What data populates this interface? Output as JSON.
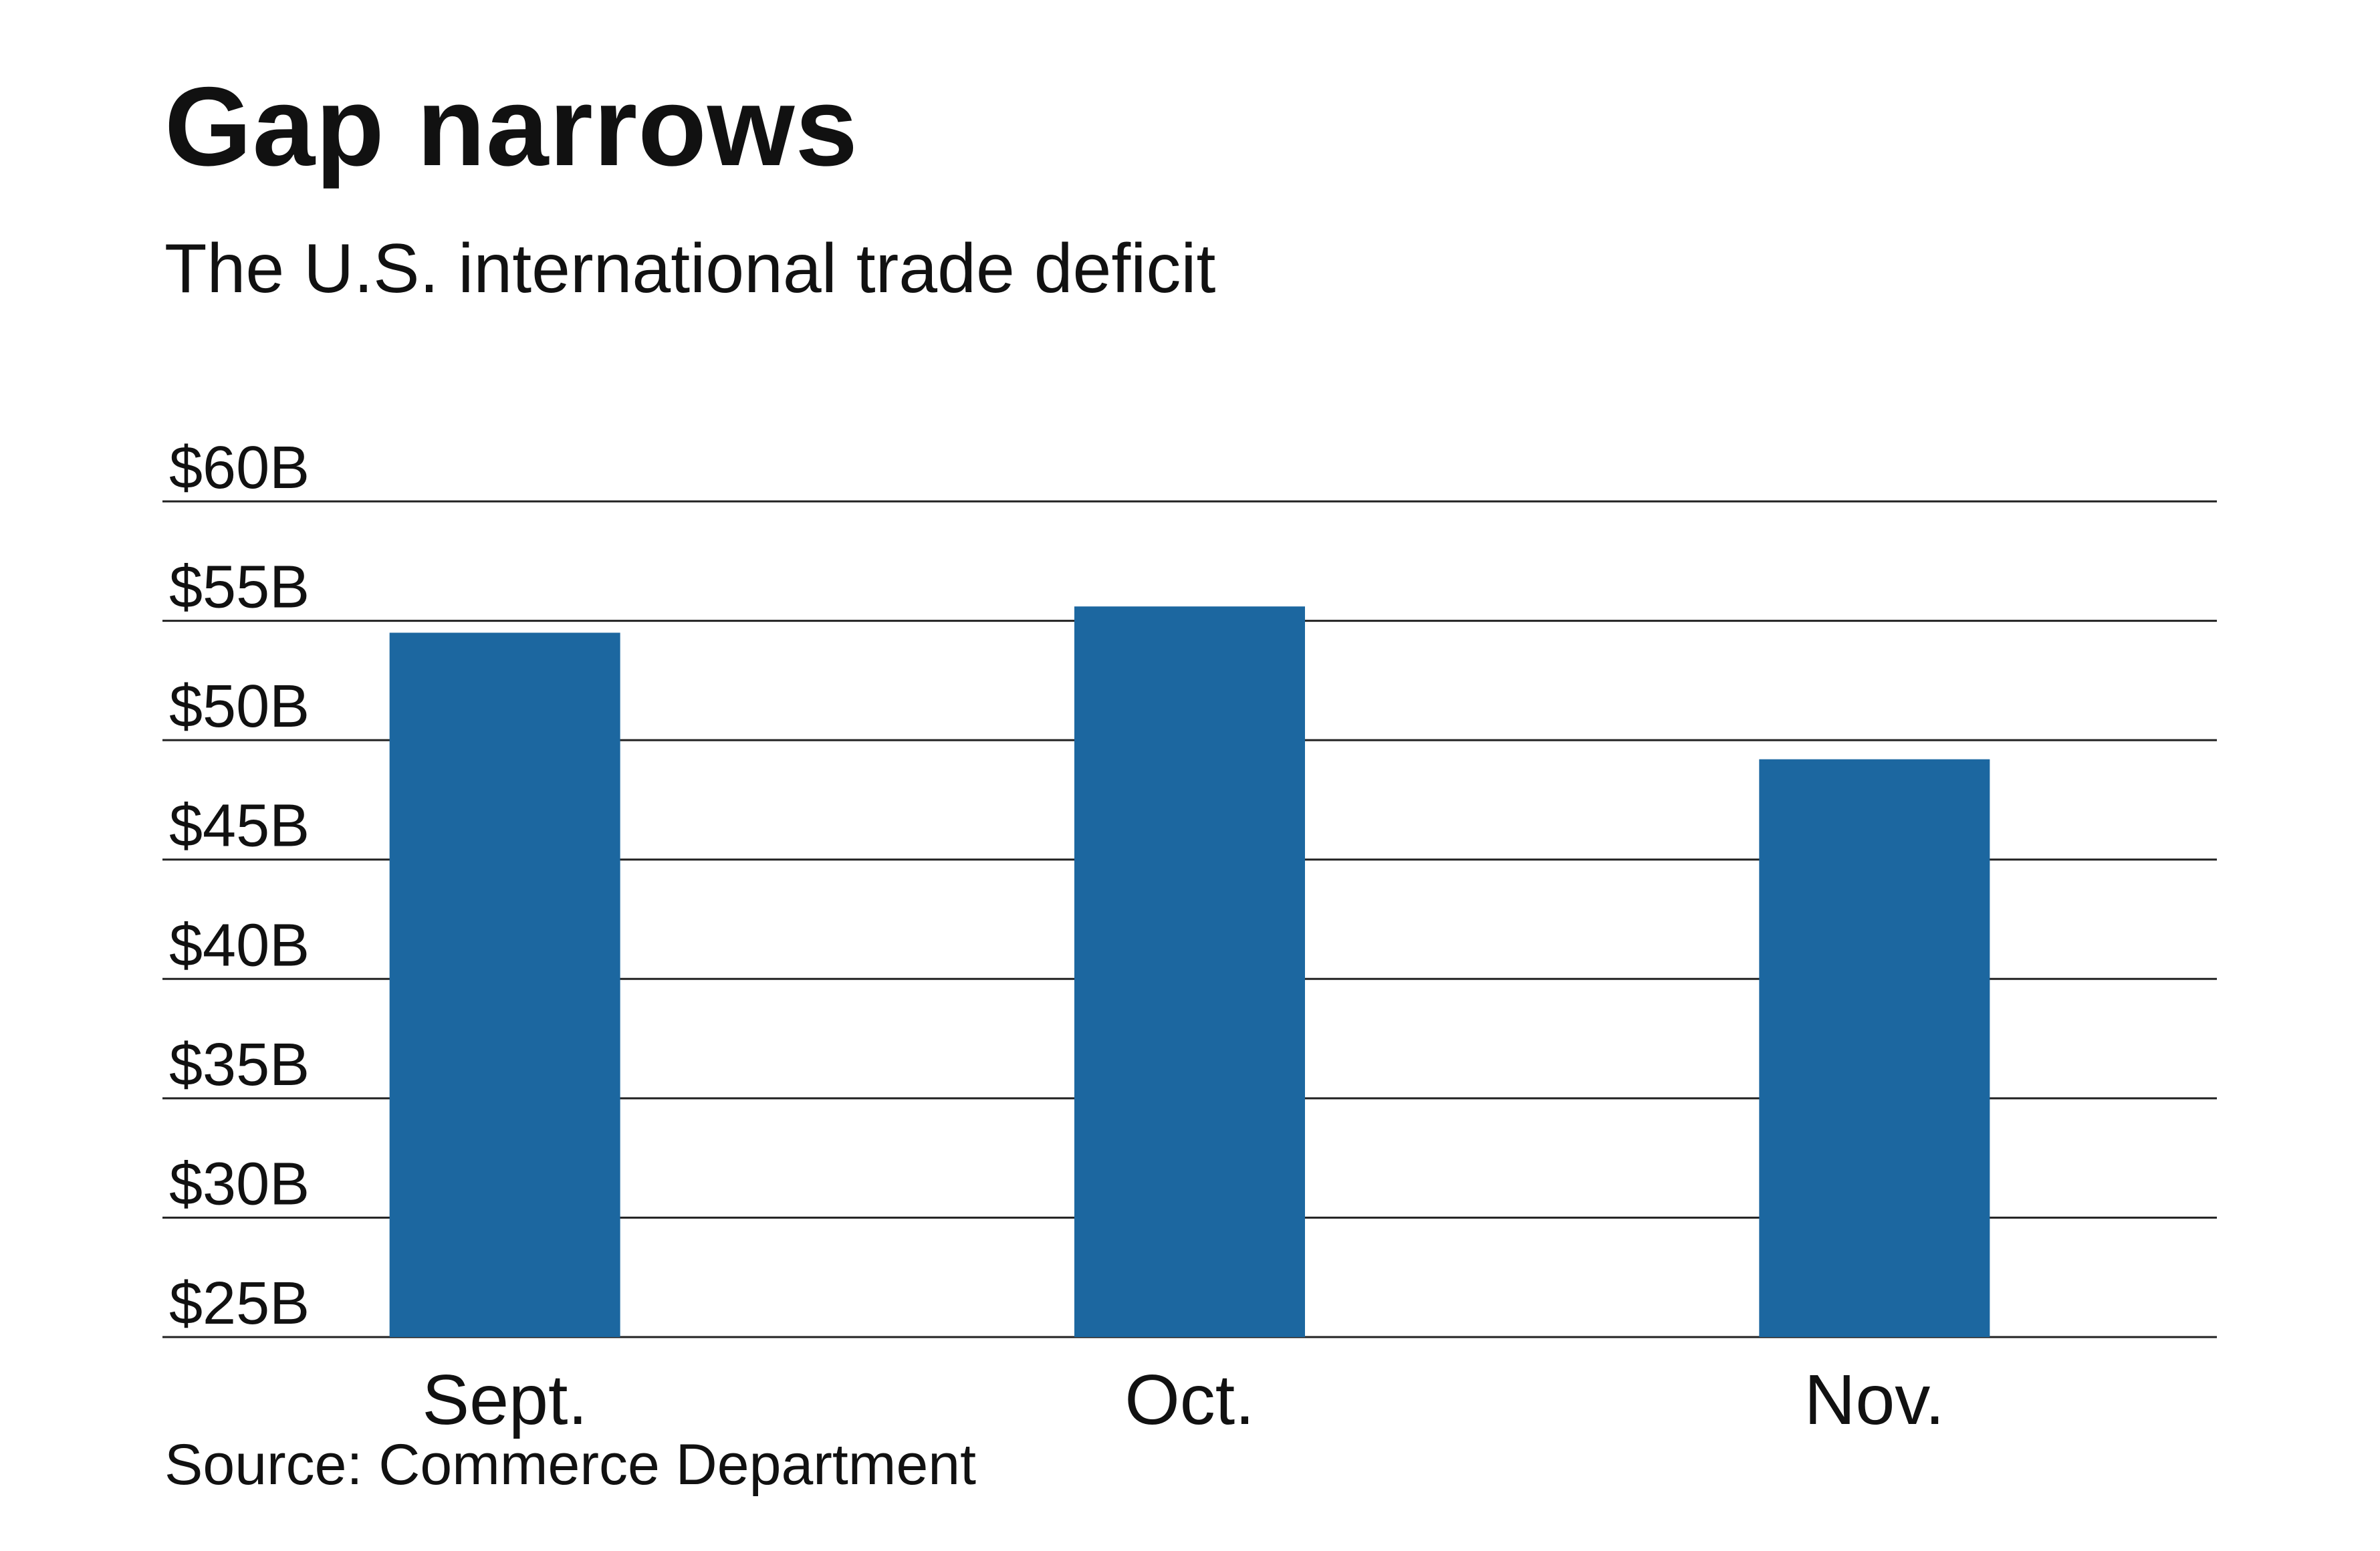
{
  "chart_data": {
    "type": "bar",
    "title": "Gap narrows",
    "subtitle": "The U.S. international trade deficit",
    "categories": [
      "Sept.",
      "Oct.",
      "Nov."
    ],
    "values": [
      54.5,
      55.6,
      49.2
    ],
    "ylim": [
      25,
      60
    ],
    "yticks": [
      60,
      55,
      50,
      45,
      40,
      35,
      30,
      25
    ],
    "ytick_labels": [
      "$60B",
      "$55B",
      "$50B",
      "$45B",
      "$40B",
      "$35B",
      "$30B",
      "$25B"
    ],
    "xlabel": "",
    "ylabel": "",
    "grid": true,
    "legend": "none",
    "bar_color": "#1c67a0",
    "grid_color": "#222222",
    "source": "Source: Commerce Department"
  }
}
